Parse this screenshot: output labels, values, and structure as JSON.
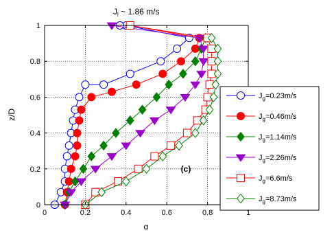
{
  "chart_data": {
    "type": "scatter",
    "title_main": "J",
    "title_sub": "l",
    "title_rest": " ~ 1.86 m/s",
    "xlabel": "α",
    "ylabel": "z/D",
    "panel_label": "(c)",
    "xlim": [
      0,
      1
    ],
    "ylim": [
      0,
      1
    ],
    "xticks": [
      "0",
      "0.2",
      "0.4",
      "0.6",
      "0.8",
      "1"
    ],
    "yticks": [
      "0",
      "0.2",
      "0.4",
      "0.6",
      "0.8",
      "1"
    ],
    "grid": true,
    "legend_position": "right",
    "series": [
      {
        "legend_main": "J",
        "legend_sub": "g",
        "legend_value": "=0.23m/s",
        "color": "#0000ff",
        "marker": "circle",
        "filled": false,
        "points": [
          [
            0.05,
            0.0
          ],
          [
            0.08,
            0.07
          ],
          [
            0.1,
            0.13
          ],
          [
            0.1,
            0.2
          ],
          [
            0.11,
            0.27
          ],
          [
            0.12,
            0.33
          ],
          [
            0.13,
            0.4
          ],
          [
            0.14,
            0.47
          ],
          [
            0.15,
            0.53
          ],
          [
            0.17,
            0.6
          ],
          [
            0.2,
            0.67
          ],
          [
            0.29,
            0.67
          ],
          [
            0.42,
            0.73
          ],
          [
            0.57,
            0.8
          ],
          [
            0.65,
            0.87
          ],
          [
            0.71,
            0.93
          ],
          [
            0.4,
            1.0
          ],
          [
            0.37,
            1.0
          ]
        ]
      },
      {
        "legend_main": "J",
        "legend_sub": "g",
        "legend_value": "=0.46m/s",
        "color": "#ff0000",
        "marker": "circle",
        "filled": true,
        "points": [
          [
            0.1,
            0.0
          ],
          [
            0.11,
            0.07
          ],
          [
            0.12,
            0.13
          ],
          [
            0.13,
            0.2
          ],
          [
            0.15,
            0.27
          ],
          [
            0.16,
            0.33
          ],
          [
            0.16,
            0.4
          ],
          [
            0.17,
            0.47
          ],
          [
            0.18,
            0.53
          ],
          [
            0.23,
            0.6
          ],
          [
            0.33,
            0.63
          ],
          [
            0.45,
            0.67
          ],
          [
            0.58,
            0.73
          ],
          [
            0.67,
            0.8
          ],
          [
            0.74,
            0.87
          ],
          [
            0.76,
            0.93
          ],
          [
            0.42,
            1.0
          ]
        ]
      },
      {
        "legend_main": "J",
        "legend_sub": "g",
        "legend_value": "=1.14m/s",
        "color": "#008000",
        "marker": "diamond",
        "filled": true,
        "points": [
          [
            0.1,
            0.0
          ],
          [
            0.12,
            0.07
          ],
          [
            0.15,
            0.13
          ],
          [
            0.19,
            0.2
          ],
          [
            0.23,
            0.27
          ],
          [
            0.29,
            0.33
          ],
          [
            0.35,
            0.4
          ],
          [
            0.42,
            0.47
          ],
          [
            0.48,
            0.53
          ],
          [
            0.55,
            0.6
          ],
          [
            0.61,
            0.67
          ],
          [
            0.68,
            0.73
          ],
          [
            0.74,
            0.8
          ],
          [
            0.77,
            0.87
          ],
          [
            0.79,
            0.93
          ]
        ]
      },
      {
        "legend_main": "J",
        "legend_sub": "g",
        "legend_value": "=2.26m/s",
        "color": "#9900cc",
        "marker": "triangle-down",
        "filled": true,
        "points": [
          [
            0.1,
            0.0
          ],
          [
            0.13,
            0.07
          ],
          [
            0.18,
            0.13
          ],
          [
            0.25,
            0.2
          ],
          [
            0.33,
            0.27
          ],
          [
            0.4,
            0.33
          ],
          [
            0.47,
            0.4
          ],
          [
            0.54,
            0.47
          ],
          [
            0.62,
            0.53
          ],
          [
            0.69,
            0.6
          ],
          [
            0.74,
            0.67
          ],
          [
            0.77,
            0.73
          ],
          [
            0.78,
            0.8
          ],
          [
            0.78,
            0.87
          ],
          [
            0.76,
            0.93
          ],
          [
            0.33,
            1.0
          ]
        ]
      },
      {
        "legend_main": "J",
        "legend_sub": "g",
        "legend_value": "=6.6m/s",
        "color": "#ff0000",
        "marker": "square",
        "filled": false,
        "points": [
          [
            0.2,
            0.0
          ],
          [
            0.25,
            0.07
          ],
          [
            0.36,
            0.13
          ],
          [
            0.46,
            0.2
          ],
          [
            0.54,
            0.27
          ],
          [
            0.62,
            0.33
          ],
          [
            0.7,
            0.4
          ],
          [
            0.75,
            0.47
          ],
          [
            0.79,
            0.53
          ],
          [
            0.8,
            0.6
          ],
          [
            0.81,
            0.67
          ],
          [
            0.82,
            0.73
          ],
          [
            0.82,
            0.8
          ],
          [
            0.82,
            0.87
          ],
          [
            0.8,
            0.93
          ],
          [
            0.42,
            1.0
          ]
        ]
      },
      {
        "legend_main": "J",
        "legend_sub": "g",
        "legend_value": "=8.73m/s",
        "color": "#008000",
        "marker": "diamond",
        "filled": false,
        "points": [
          [
            0.2,
            0.0
          ],
          [
            0.28,
            0.07
          ],
          [
            0.4,
            0.13
          ],
          [
            0.5,
            0.2
          ],
          [
            0.58,
            0.27
          ],
          [
            0.66,
            0.33
          ],
          [
            0.74,
            0.4
          ],
          [
            0.78,
            0.47
          ],
          [
            0.81,
            0.53
          ],
          [
            0.83,
            0.6
          ],
          [
            0.84,
            0.67
          ],
          [
            0.85,
            0.73
          ],
          [
            0.85,
            0.8
          ],
          [
            0.85,
            0.87
          ],
          [
            0.82,
            0.93
          ]
        ]
      }
    ]
  }
}
